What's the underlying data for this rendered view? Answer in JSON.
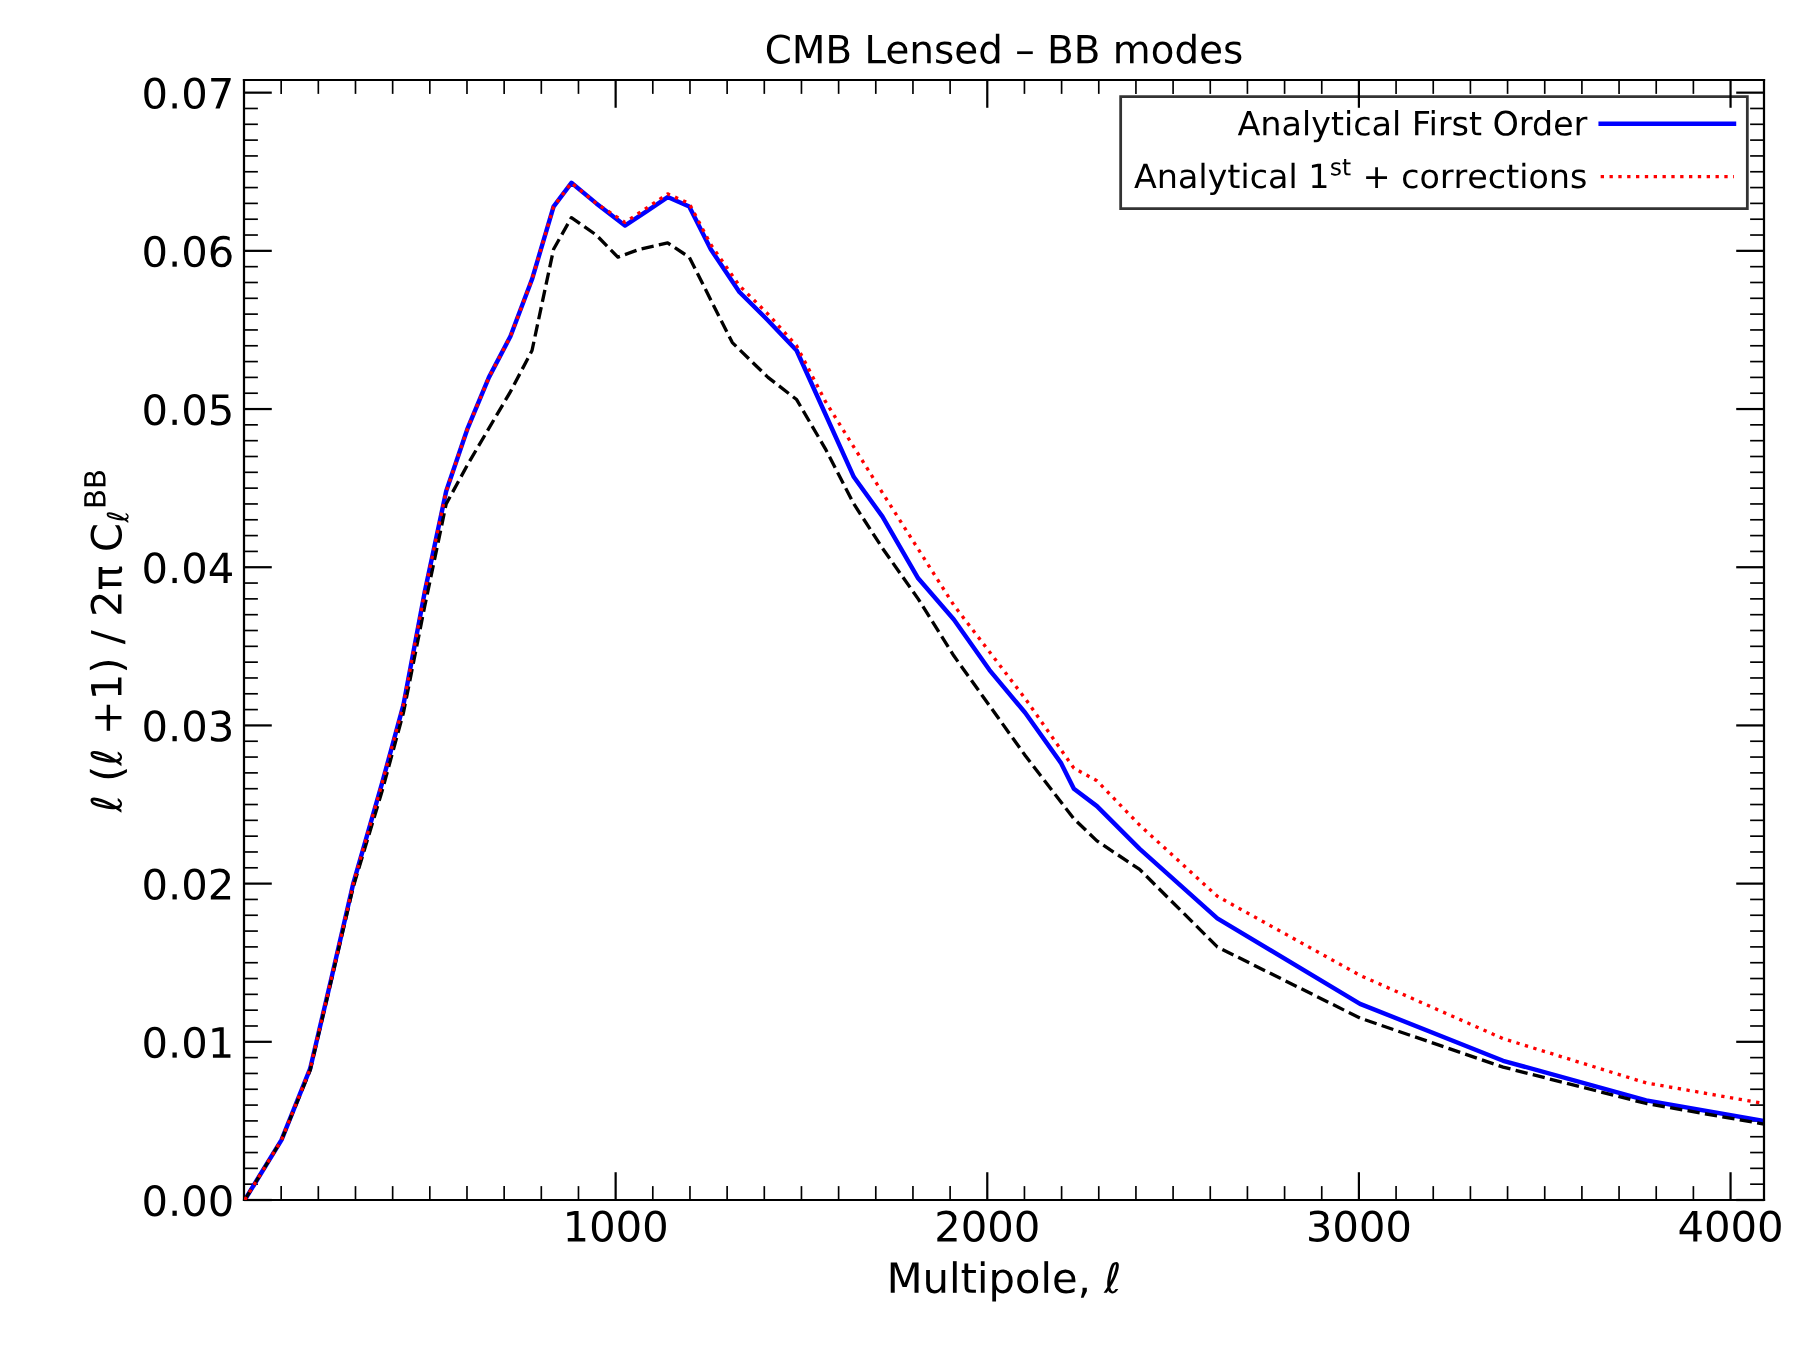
{
  "chart_data": {
    "type": "line",
    "title": "CMB Lensed – BB modes",
    "xlabel": "Multipole, ℓ",
    "ylabel": "ℓ (ℓ +1) / 2π C$_{ℓ}$$^{BB}$",
    "xlim": [
      0,
      4090
    ],
    "xticks": [
      1000,
      2000,
      3000,
      4000
    ],
    "ylim": [
      0,
      0.0708
    ],
    "yticks": [
      {
        "value": 0,
        "label": "0.00"
      },
      {
        "value": 0.01,
        "label": "0.01"
      },
      {
        "value": 0.02,
        "label": "0.02"
      },
      {
        "value": 0.03,
        "label": "0.03"
      },
      {
        "value": 0.04,
        "label": "0.04"
      },
      {
        "value": 0.05,
        "label": "0.05"
      },
      {
        "value": 0.06,
        "label": "0.06"
      },
      {
        "value": 0.07,
        "label": "0.07"
      }
    ],
    "legend": "top right",
    "grid": false,
    "series": [
      {
        "name": "Analytical First Order",
        "color": "#0000ff",
        "line_style": "solid",
        "x": [
          2,
          101,
          178,
          236,
          294,
          371,
          429,
          486,
          544,
          602,
          659,
          717,
          775,
          833,
          881,
          948,
          1025,
          1083,
          1140,
          1198,
          1256,
          1333,
          1410,
          1487,
          1564,
          1641,
          1718,
          1814,
          1910,
          2006,
          2102,
          2199,
          2233,
          2295,
          2410,
          2619,
          3003,
          3388,
          3773,
          4090
        ],
        "values": [
          0,
          0.0038,
          0.0083,
          0.0141,
          0.02,
          0.0263,
          0.0313,
          0.0384,
          0.0448,
          0.0488,
          0.052,
          0.0546,
          0.0582,
          0.0628,
          0.0643,
          0.063,
          0.0616,
          0.0625,
          0.0634,
          0.0628,
          0.0601,
          0.0574,
          0.0556,
          0.0537,
          0.0497,
          0.0457,
          0.0432,
          0.0393,
          0.0367,
          0.0335,
          0.0308,
          0.0276,
          0.026,
          0.0249,
          0.0222,
          0.0178,
          0.0124,
          0.0088,
          0.0063,
          0.005
        ]
      },
      {
        "name": "Analytical 1$^{st}$ + corrections",
        "color": "#ff0000",
        "line_style": "dotted",
        "x": [
          2,
          101,
          178,
          236,
          294,
          371,
          429,
          486,
          544,
          602,
          659,
          717,
          775,
          833,
          881,
          948,
          1025,
          1083,
          1140,
          1198,
          1256,
          1333,
          1410,
          1487,
          1564,
          1718,
          1910,
          2102,
          2233,
          2295,
          2410,
          2619,
          3003,
          3388,
          3773,
          4090
        ],
        "values": [
          0,
          0.0038,
          0.0083,
          0.0141,
          0.02,
          0.0263,
          0.0313,
          0.0384,
          0.0448,
          0.0488,
          0.052,
          0.0546,
          0.0582,
          0.0628,
          0.0643,
          0.063,
          0.0618,
          0.0627,
          0.0636,
          0.063,
          0.0604,
          0.0578,
          0.056,
          0.054,
          0.0505,
          0.0447,
          0.0376,
          0.0317,
          0.0273,
          0.0265,
          0.0237,
          0.0192,
          0.0142,
          0.0102,
          0.0074,
          0.0061
        ]
      },
      {
        "color": "#000000",
        "line_style": "dashed",
        "x": [
          2,
          101,
          178,
          236,
          294,
          371,
          429,
          486,
          544,
          602,
          717,
          775,
          833,
          881,
          948,
          1006,
          1064,
          1140,
          1198,
          1314,
          1410,
          1487,
          1564,
          1641,
          1718,
          1814,
          1910,
          2102,
          2233,
          2295,
          2410,
          2619,
          3003,
          3388,
          3773,
          4090
        ],
        "values": [
          0,
          0.0038,
          0.0082,
          0.014,
          0.0198,
          0.0258,
          0.0308,
          0.0375,
          0.044,
          0.0465,
          0.0511,
          0.0537,
          0.0601,
          0.0621,
          0.061,
          0.0596,
          0.0601,
          0.0605,
          0.0596,
          0.0542,
          0.052,
          0.0506,
          0.0475,
          0.044,
          0.0412,
          0.038,
          0.0344,
          0.0281,
          0.0241,
          0.0227,
          0.0209,
          0.016,
          0.0115,
          0.0084,
          0.0061,
          0.0048
        ]
      }
    ]
  }
}
